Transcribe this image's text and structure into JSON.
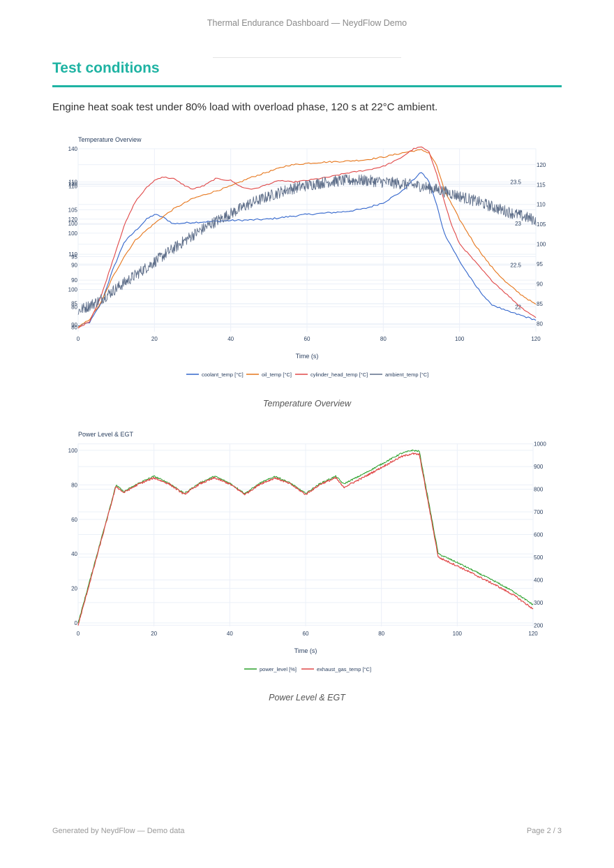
{
  "header": {
    "title": "Thermal Endurance Dashboard — NeydFlow Demo"
  },
  "section": {
    "title": "Test conditions",
    "intro": "Engine heat soak test under 80% load with overload phase, 120 s at 22°C ambient."
  },
  "colors": {
    "accent": "#1fb3a3",
    "coolant": "#3366cc",
    "oil": "#e6761b",
    "cylinder_head": "#e04848",
    "ambient": "#5f6f8a",
    "power": "#2ca02c",
    "egt": "#e04848"
  },
  "chart_data": [
    {
      "type": "line",
      "title": "Temperature Overview",
      "caption": "Temperature Overview",
      "xlabel": "Time (s)",
      "xlim": [
        0,
        120
      ],
      "x_ticks": [
        "0",
        "20",
        "40",
        "60",
        "80",
        "100",
        "120"
      ],
      "grid": true,
      "legend_position": "bottom",
      "y_axes": [
        {
          "id": "y_coolant",
          "side": "left",
          "range": [
            79,
            118
          ],
          "ticks": [
            "80",
            "85",
            "90",
            "95",
            "100",
            "105",
            "110"
          ]
        },
        {
          "id": "y_oil",
          "side": "left",
          "range": [
            74,
            118
          ],
          "ticks": [
            "80",
            "90",
            "100",
            "110"
          ]
        },
        {
          "id": "y_head",
          "side": "left",
          "range": [
            88,
            140
          ],
          "ticks": [
            "90",
            "100",
            "110",
            "120",
            "130",
            "140"
          ]
        },
        {
          "id": "y_overlay",
          "side": "right",
          "range": [
            78,
            124
          ],
          "ticks": [
            "80",
            "85",
            "90",
            "95",
            "100",
            "105",
            "110",
            "115",
            "120"
          ]
        },
        {
          "id": "y_ambient",
          "side": "right",
          "range": [
            21.7,
            23.9
          ],
          "ticks": [
            "22",
            "22.5",
            "23",
            "23.5"
          ]
        }
      ],
      "series": [
        {
          "name": "coolant_temp [°C]",
          "axis": "y_coolant",
          "color_key": "coolant",
          "x": [
            0,
            3,
            6,
            9,
            12,
            15,
            18,
            20,
            22,
            25,
            30,
            35,
            40,
            45,
            50,
            55,
            60,
            65,
            70,
            75,
            80,
            85,
            88,
            90,
            92,
            94,
            96,
            100,
            104,
            108,
            112,
            116,
            120
          ],
          "values": [
            80.2,
            81,
            85,
            92,
            98,
            100.5,
            103,
            104,
            103.5,
            102,
            102.3,
            102.5,
            102.7,
            102.8,
            103,
            103.5,
            104,
            104.3,
            104.6,
            105.2,
            106.5,
            109,
            111.5,
            113,
            111,
            106,
            100,
            94,
            89,
            85,
            83.5,
            82.5,
            81.5
          ]
        },
        {
          "name": "oil_temp [°C]",
          "axis": "y_oil",
          "color_key": "oil",
          "x": [
            0,
            3,
            6,
            9,
            12,
            15,
            18,
            20,
            22,
            25,
            30,
            35,
            40,
            45,
            50,
            55,
            60,
            65,
            70,
            75,
            80,
            85,
            88,
            90,
            92,
            94,
            96,
            100,
            104,
            108,
            112,
            116,
            120
          ],
          "values": [
            75,
            77,
            81,
            87,
            92,
            96,
            98.5,
            100,
            101.5,
            103.5,
            106,
            107.5,
            109,
            111,
            112.5,
            114,
            114.5,
            114.8,
            115,
            115.3,
            116,
            117,
            117.5,
            117.7,
            117,
            114,
            108,
            101,
            95,
            90,
            86,
            83,
            80.5
          ]
        },
        {
          "name": "cylinder_head_temp [°C]",
          "axis": "y_head",
          "color_key": "cylinder_head",
          "x": [
            0,
            3,
            6,
            9,
            12,
            15,
            18,
            20,
            22,
            25,
            28,
            30,
            33,
            36,
            40,
            43,
            46,
            50,
            53,
            56,
            60,
            63,
            66,
            70,
            73,
            76,
            80,
            84,
            88,
            90,
            92,
            94,
            96,
            98,
            100,
            104,
            108,
            112,
            116,
            120
          ],
          "values": [
            89,
            91,
            98,
            108,
            118,
            125,
            129,
            131,
            132,
            131.5,
            129.5,
            128.5,
            129.5,
            131.5,
            131,
            129,
            128.5,
            130,
            131,
            130.5,
            131,
            131.5,
            132,
            133,
            133.5,
            134,
            135,
            137,
            140,
            140.5,
            139,
            133,
            125,
            118,
            113,
            108,
            103,
            99,
            95,
            92
          ]
        },
        {
          "name": "ambient_temp [°C]",
          "axis": "y_ambient",
          "color_key": "ambient",
          "x": [
            0,
            5,
            10,
            15,
            20,
            25,
            30,
            35,
            40,
            45,
            50,
            55,
            60,
            65,
            70,
            75,
            80,
            85,
            90,
            95,
            100,
            105,
            110,
            115,
            120
          ],
          "values": [
            21.95,
            22.06,
            22.22,
            22.38,
            22.54,
            22.7,
            22.86,
            23.0,
            23.12,
            23.24,
            23.33,
            23.41,
            23.46,
            23.5,
            23.52,
            23.52,
            23.5,
            23.48,
            23.45,
            23.4,
            23.33,
            23.26,
            23.18,
            23.11,
            23.04
          ]
        }
      ]
    },
    {
      "type": "line",
      "title": "Power Level & EGT",
      "caption": "Power Level & EGT",
      "xlabel": "Time (s)",
      "xlim": [
        0,
        120
      ],
      "x_ticks": [
        "0",
        "20",
        "40",
        "60",
        "80",
        "100",
        "120"
      ],
      "grid": true,
      "legend_position": "bottom",
      "y_axes": [
        {
          "id": "y_power",
          "side": "left",
          "range": [
            -2,
            104
          ],
          "ticks": [
            "0",
            "20",
            "40",
            "60",
            "80",
            "100"
          ]
        },
        {
          "id": "y_egt",
          "side": "right",
          "range": [
            195,
            1002
          ],
          "ticks": [
            "200",
            "300",
            "400",
            "500",
            "600",
            "700",
            "800",
            "900",
            "1000"
          ]
        }
      ],
      "series": [
        {
          "name": "power_level [%]",
          "axis": "y_power",
          "color_key": "power",
          "x": [
            0,
            10,
            12,
            16,
            20,
            24,
            28,
            32,
            36,
            40,
            44,
            48,
            52,
            56,
            60,
            64,
            68,
            70,
            75,
            80,
            85,
            88,
            90,
            95,
            100,
            105,
            110,
            115,
            120
          ],
          "values": [
            0,
            80,
            76,
            81,
            85,
            81,
            75,
            81,
            85,
            81,
            75,
            81,
            85,
            81,
            75,
            81,
            85,
            80.5,
            86,
            92,
            98,
            100,
            99.5,
            40,
            35,
            29.5,
            24,
            18,
            10.5
          ]
        },
        {
          "name": "exhaust_gas_temp [°C]",
          "axis": "y_egt",
          "color_key": "egt",
          "x": [
            0,
            10,
            12,
            16,
            20,
            24,
            28,
            32,
            36,
            40,
            44,
            48,
            52,
            56,
            60,
            64,
            68,
            70,
            75,
            80,
            85,
            88,
            90,
            95,
            100,
            105,
            110,
            115,
            120
          ],
          "values": [
            200,
            813,
            785,
            823,
            850,
            823,
            777,
            823,
            850,
            823,
            777,
            823,
            850,
            823,
            777,
            823,
            850,
            808,
            850,
            896,
            942,
            957,
            953,
            500,
            462,
            420,
            378,
            332,
            272
          ]
        }
      ]
    }
  ],
  "footer": {
    "left": "Generated by NeydFlow — Demo data",
    "right": "Page 2 / 3"
  }
}
